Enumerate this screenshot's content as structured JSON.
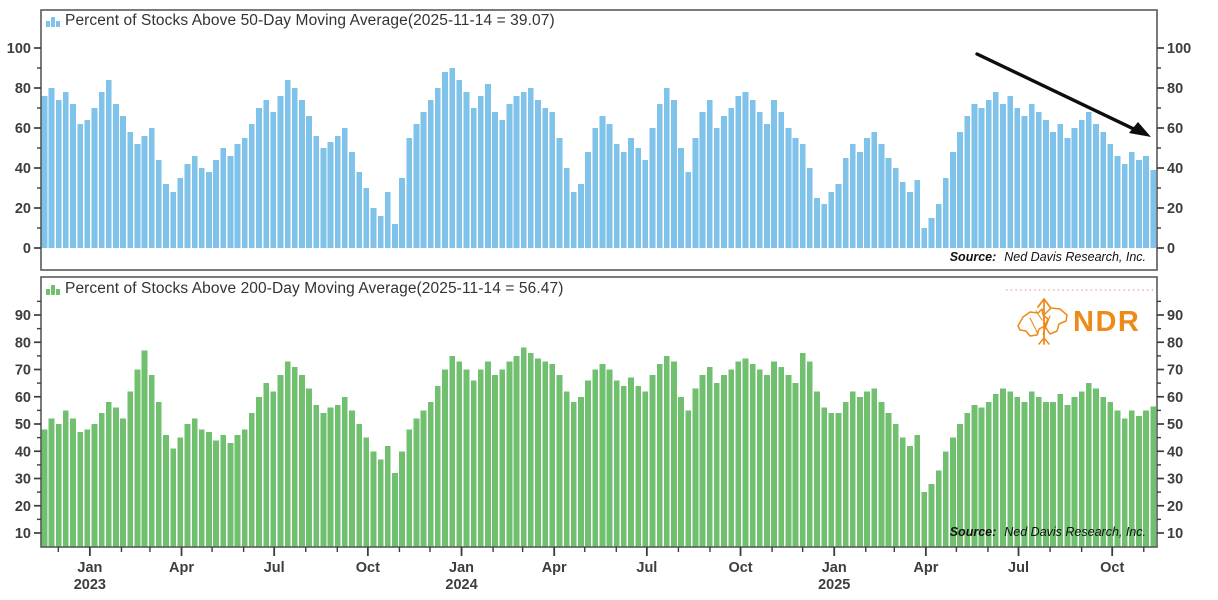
{
  "figure": {
    "background": "#ffffff",
    "axis_text_color": "#3d3d3d",
    "border_color": "#5a5a5a"
  },
  "logo": {
    "text": "NDR",
    "color": "#ee8a1a",
    "icon": "bull-bear-arrow"
  },
  "source": {
    "label": "Source:",
    "text": "Ned Davis Research, Inc."
  },
  "x_axis": {
    "start_date": "2022-11-14",
    "end_date": "2025-11-14",
    "minor_tick": "monthly",
    "labels": [
      {
        "month": "Jan",
        "year": "2023"
      },
      {
        "month": "Apr"
      },
      {
        "month": "Jul"
      },
      {
        "month": "Oct"
      },
      {
        "month": "Jan",
        "year": "2024"
      },
      {
        "month": "Apr"
      },
      {
        "month": "Jul"
      },
      {
        "month": "Oct"
      },
      {
        "month": "Jan",
        "year": "2025"
      },
      {
        "month": "Apr"
      },
      {
        "month": "Jul"
      },
      {
        "month": "Oct"
      }
    ]
  },
  "chart_data": [
    {
      "type": "bar",
      "title": "Percent of Stocks Above 50-Day Moving Average(2025-11-14 = 39.07)",
      "latest": {
        "date": "2025-11-14",
        "value": 39.07
      },
      "color": "#7fc2ea",
      "ylim": [
        0,
        100
      ],
      "yticks": [
        0,
        20,
        40,
        60,
        80,
        100
      ],
      "y_minor_step": 10,
      "grid": false,
      "legend_position": "top-left",
      "annotation": "black down-sloping trend arrow, upper right",
      "x_start": "2022-11-14",
      "x_step_days": 7,
      "values": [
        76,
        80,
        74,
        78,
        72,
        62,
        64,
        70,
        78,
        84,
        72,
        66,
        58,
        52,
        56,
        60,
        44,
        32,
        28,
        35,
        42,
        46,
        40,
        38,
        44,
        50,
        46,
        52,
        55,
        62,
        70,
        74,
        68,
        76,
        84,
        80,
        74,
        66,
        56,
        50,
        53,
        56,
        60,
        48,
        38,
        30,
        20,
        16,
        28,
        12,
        35,
        55,
        62,
        68,
        74,
        80,
        88,
        90,
        84,
        78,
        70,
        76,
        82,
        68,
        64,
        72,
        76,
        78,
        80,
        74,
        70,
        68,
        55,
        40,
        28,
        32,
        48,
        60,
        66,
        62,
        52,
        48,
        55,
        50,
        44,
        60,
        72,
        80,
        74,
        50,
        38,
        55,
        68,
        74,
        60,
        66,
        70,
        76,
        78,
        74,
        68,
        62,
        74,
        68,
        60,
        55,
        52,
        40,
        25,
        22,
        28,
        32,
        45,
        52,
        48,
        55,
        58,
        52,
        45,
        40,
        33,
        28,
        34,
        10,
        15,
        22,
        35,
        48,
        58,
        66,
        72,
        70,
        74,
        78,
        72,
        76,
        70,
        66,
        72,
        68,
        64,
        58,
        62,
        55,
        60,
        64,
        68,
        62,
        58,
        52,
        46,
        42,
        48,
        44,
        46,
        39.07
      ]
    },
    {
      "type": "bar",
      "title": "Percent of Stocks Above 200-Day Moving Average(2025-11-14 = 56.47)",
      "latest": {
        "date": "2025-11-14",
        "value": 56.47
      },
      "color": "#70c070",
      "ylim": [
        5,
        95
      ],
      "yticks": [
        10,
        20,
        30,
        40,
        50,
        60,
        70,
        80,
        90
      ],
      "y_minor_step": 5,
      "grid": false,
      "legend_position": "top-left",
      "annotation": "faint pink dotted line near top right; NDR logo top right",
      "x_start": "2022-11-14",
      "x_step_days": 7,
      "values": [
        48,
        52,
        50,
        55,
        52,
        47,
        48,
        50,
        54,
        58,
        56,
        52,
        62,
        70,
        77,
        68,
        58,
        46,
        41,
        45,
        50,
        52,
        48,
        47,
        44,
        46,
        43,
        46,
        48,
        54,
        60,
        65,
        62,
        68,
        73,
        71,
        68,
        63,
        57,
        54,
        56,
        57,
        60,
        55,
        50,
        45,
        40,
        37,
        42,
        32,
        40,
        48,
        52,
        55,
        58,
        64,
        70,
        75,
        73,
        70,
        66,
        70,
        73,
        68,
        70,
        73,
        75,
        78,
        76,
        74,
        73,
        72,
        68,
        62,
        58,
        60,
        66,
        70,
        72,
        70,
        66,
        64,
        67,
        64,
        62,
        68,
        72,
        75,
        73,
        60,
        55,
        63,
        68,
        71,
        65,
        68,
        70,
        73,
        74,
        72,
        70,
        68,
        73,
        71,
        68,
        65,
        76,
        73,
        62,
        56,
        54,
        54,
        58,
        62,
        60,
        62,
        63,
        58,
        54,
        50,
        45,
        42,
        46,
        25,
        28,
        33,
        40,
        45,
        50,
        54,
        57,
        56,
        58,
        61,
        63,
        62,
        60,
        58,
        62,
        60,
        58,
        58,
        61,
        57,
        60,
        62,
        65,
        63,
        60,
        58,
        55,
        52,
        55,
        53,
        55,
        56.47
      ]
    }
  ]
}
